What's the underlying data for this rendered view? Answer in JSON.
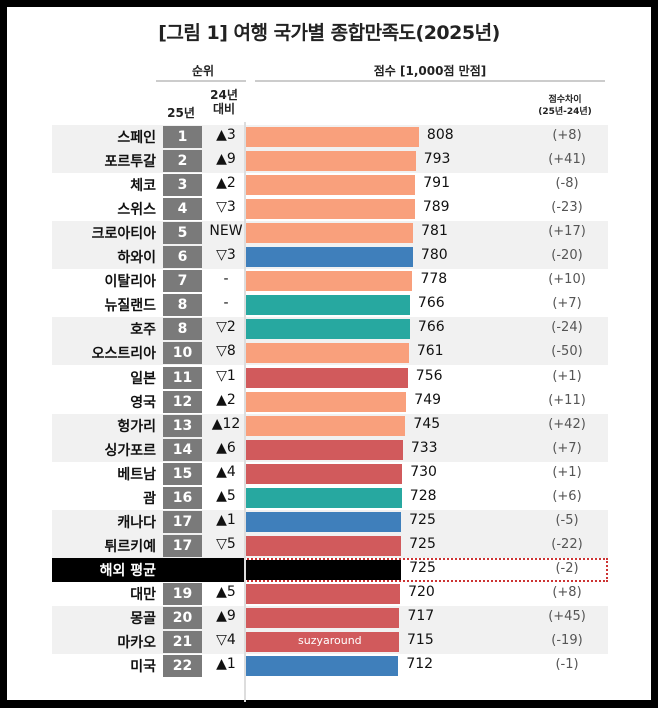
{
  "chart_data": {
    "type": "bar",
    "title": "[그림 1] 여행 국가별 종합만족도(2025년)",
    "headers": {
      "rank_group": "순위",
      "score_group": "점수 [1,000점 만점]",
      "rank_25": "25년",
      "rank_change": "24년\n대비",
      "diff": "점수차이\n(25년-24년)"
    },
    "region_colors": {
      "europe": "#f9a07c",
      "americas": "#3f7fbb",
      "oceania": "#27a8a0",
      "asia": "#d15a5c",
      "average": "#000000"
    },
    "rows": [
      {
        "name": "스페인",
        "rank": "1",
        "change": "▲3",
        "value": 808,
        "diff": "(+8)",
        "region": "europe"
      },
      {
        "name": "포르투갈",
        "rank": "2",
        "change": "▲9",
        "value": 793,
        "diff": "(+41)",
        "region": "europe"
      },
      {
        "name": "체코",
        "rank": "3",
        "change": "▲2",
        "value": 791,
        "diff": "(-8)",
        "region": "europe"
      },
      {
        "name": "스위스",
        "rank": "4",
        "change": "▽3",
        "value": 789,
        "diff": "(-23)",
        "region": "europe"
      },
      {
        "name": "크로아티아",
        "rank": "5",
        "change": "NEW",
        "value": 781,
        "diff": "(+17)",
        "region": "europe"
      },
      {
        "name": "하와이",
        "rank": "6",
        "change": "▽3",
        "value": 780,
        "diff": "(-20)",
        "region": "americas"
      },
      {
        "name": "이탈리아",
        "rank": "7",
        "change": "-",
        "value": 778,
        "diff": "(+10)",
        "region": "europe"
      },
      {
        "name": "뉴질랜드",
        "rank": "8",
        "change": "-",
        "value": 766,
        "diff": "(+7)",
        "region": "oceania"
      },
      {
        "name": "호주",
        "rank": "8",
        "change": "▽2",
        "value": 766,
        "diff": "(-24)",
        "region": "oceania"
      },
      {
        "name": "오스트리아",
        "rank": "10",
        "change": "▽8",
        "value": 761,
        "diff": "(-50)",
        "region": "europe"
      },
      {
        "name": "일본",
        "rank": "11",
        "change": "▽1",
        "value": 756,
        "diff": "(+1)",
        "region": "asia"
      },
      {
        "name": "영국",
        "rank": "12",
        "change": "▲2",
        "value": 749,
        "diff": "(+11)",
        "region": "europe"
      },
      {
        "name": "헝가리",
        "rank": "13",
        "change": "▲12",
        "value": 745,
        "diff": "(+42)",
        "region": "europe"
      },
      {
        "name": "싱가포르",
        "rank": "14",
        "change": "▲6",
        "value": 733,
        "diff": "(+7)",
        "region": "asia"
      },
      {
        "name": "베트남",
        "rank": "15",
        "change": "▲4",
        "value": 730,
        "diff": "(+1)",
        "region": "asia"
      },
      {
        "name": "괌",
        "rank": "16",
        "change": "▲5",
        "value": 728,
        "diff": "(+6)",
        "region": "oceania"
      },
      {
        "name": "캐나다",
        "rank": "17",
        "change": "▲1",
        "value": 725,
        "diff": "(-5)",
        "region": "americas"
      },
      {
        "name": "튀르키예",
        "rank": "17",
        "change": "▽5",
        "value": 725,
        "diff": "(-22)",
        "region": "asia"
      },
      {
        "name": "해외 평균",
        "rank": "",
        "change": "",
        "value": 725,
        "diff": "(-2)",
        "region": "average"
      },
      {
        "name": "대만",
        "rank": "19",
        "change": "▲5",
        "value": 720,
        "diff": "(+8)",
        "region": "asia"
      },
      {
        "name": "몽골",
        "rank": "20",
        "change": "▲9",
        "value": 717,
        "diff": "(+45)",
        "region": "asia"
      },
      {
        "name": "마카오",
        "rank": "21",
        "change": "▽4",
        "value": 715,
        "diff": "(-19)",
        "region": "asia"
      },
      {
        "name": "미국",
        "rank": "22",
        "change": "▲1",
        "value": 712,
        "diff": "(-1)",
        "region": "americas"
      }
    ],
    "xlim": [
      0,
      1000
    ]
  },
  "watermark": "suzyaround"
}
